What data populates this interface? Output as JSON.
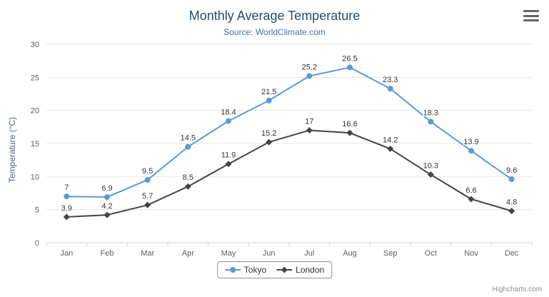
{
  "header": {
    "title": "Monthly Average Temperature",
    "subtitle": "Source: WorldClimate.com",
    "export_menu_icon": "hamburger-icon"
  },
  "credit": "Highcharts.com",
  "chart_data": {
    "type": "line",
    "title": "Monthly Average Temperature",
    "subtitle": "Source: WorldClimate.com",
    "xlabel": "",
    "ylabel": "Temperature (°C)",
    "categories": [
      "Jan",
      "Feb",
      "Mar",
      "Apr",
      "May",
      "Jun",
      "Jul",
      "Aug",
      "Sep",
      "Oct",
      "Nov",
      "Dec"
    ],
    "series": [
      {
        "name": "Tokyo",
        "color": "#5b9bd5",
        "marker": "circle",
        "values": [
          7,
          6.9,
          9.5,
          14.5,
          18.4,
          21.5,
          25.2,
          26.5,
          23.3,
          18.3,
          13.9,
          9.6
        ]
      },
      {
        "name": "London",
        "color": "#434348",
        "marker": "diamond",
        "values": [
          3.9,
          4.2,
          5.7,
          8.5,
          11.9,
          15.2,
          17,
          16.6,
          14.2,
          10.3,
          6.6,
          4.8
        ]
      }
    ],
    "ylim": [
      0,
      30
    ],
    "yticks": [
      0,
      5,
      10,
      15,
      20,
      25,
      30
    ],
    "grid": true,
    "data_labels": true,
    "legend_position": "bottom",
    "grid_color": "#e6e6e6",
    "axis_line_color": "#ccd6eb",
    "tick_label_color": "#606060",
    "data_label_color": "#333333"
  }
}
